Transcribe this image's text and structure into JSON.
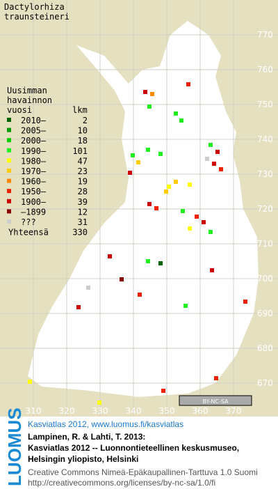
{
  "title": [
    "Dactylorhiza",
    "traunsteineri"
  ],
  "legend": {
    "heading": [
      "Uusimman",
      "havainnon",
      "vuosi"
    ],
    "count_heading": "lkm",
    "rows": [
      {
        "label": "2010–",
        "count": 2,
        "color": "#006400"
      },
      {
        "label": "2005–",
        "count": 10,
        "color": "#009900"
      },
      {
        "label": "2000–",
        "count": 18,
        "color": "#00cc00"
      },
      {
        "label": "1990–",
        "count": 101,
        "color": "#22ee22"
      },
      {
        "label": "1980–",
        "count": 47,
        "color": "#ffff00"
      },
      {
        "label": "1970–",
        "count": 23,
        "color": "#ffcc00"
      },
      {
        "label": "1960–",
        "count": 19,
        "color": "#ff8800"
      },
      {
        "label": "1950–",
        "count": 28,
        "color": "#ee2200"
      },
      {
        "label": "1900–",
        "count": 39,
        "color": "#cc0000"
      },
      {
        "label": "–1899",
        "count": 12,
        "color": "#880000"
      },
      {
        "label": "???",
        "count": 31,
        "color": "#cccccc"
      }
    ],
    "total_label": "Yhteensä",
    "total": 330
  },
  "grid": {
    "northing": [
      770,
      760,
      750,
      740,
      730,
      720,
      710,
      700,
      690,
      680,
      670
    ],
    "easting": [
      310,
      320,
      330,
      340,
      350,
      360,
      370
    ]
  },
  "badge": "BY-NC-SA",
  "footer": {
    "logo": "LUOMUS",
    "link": "Kasviatlas 2012, www.luomus.fi/kasviatlas",
    "citation": [
      "Lampinen, R. & Lahti, T. 2013:",
      "Kasviatlas 2012 -- Luonnontieteellinen keskusmuseo,",
      "Helsingin yliopisto, Helsinki"
    ],
    "license": [
      "Creative Commons Nimeä-Epäkaupallinen-Tarttuva 1.0 Suomi",
      "http://creativecommons.org/licenses/by-nc-sa/1.0/fi"
    ]
  }
}
